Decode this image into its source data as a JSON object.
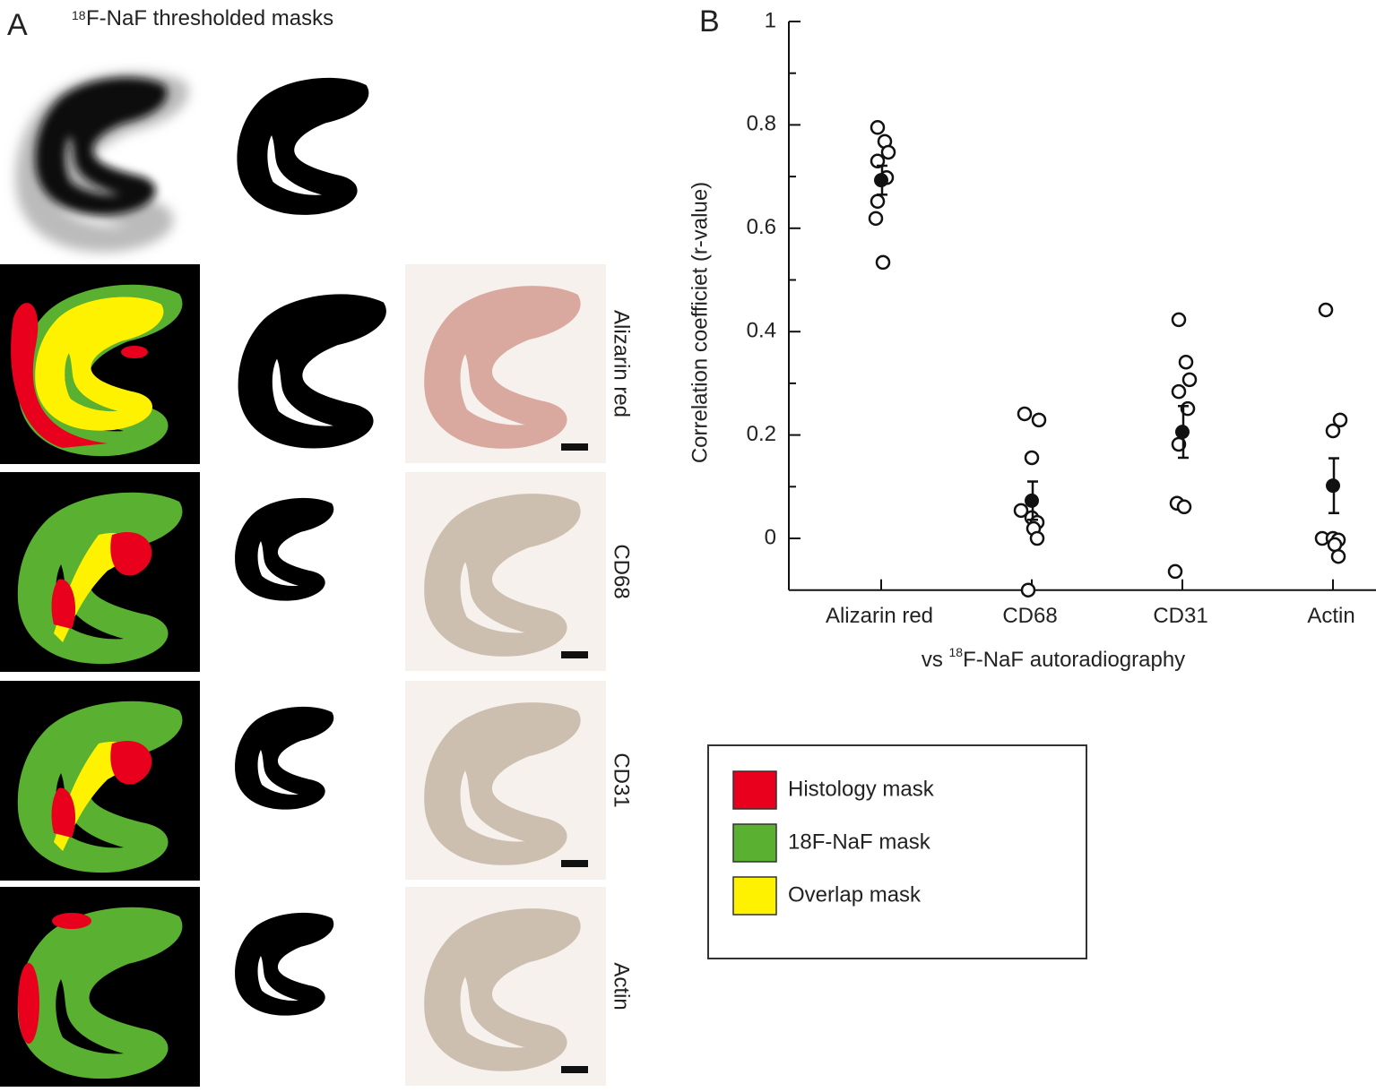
{
  "panel_a": {
    "label": "A",
    "title": {
      "superscript": "18",
      "text": "F-NaF thresholded masks"
    },
    "row_labels": [
      "Alizarin red",
      "CD68",
      "CD31",
      "Actin"
    ]
  },
  "legend": {
    "items": [
      {
        "name": "Histology mask",
        "color": "#e8001c"
      },
      {
        "name": "18F-NaF mask",
        "color": "#5ab030"
      },
      {
        "name": "Overlap mask",
        "color": "#fff200"
      }
    ]
  },
  "chart_data": {
    "type": "scatter",
    "label": "B",
    "ylabel": "Correlation coefficiet (r-value)",
    "xlabel": {
      "prefix": "vs ",
      "superscript": "18",
      "text": "F-NaF autoradiography"
    },
    "categories": [
      "Alizarin red",
      "CD68",
      "CD31",
      "Actin"
    ],
    "values": [
      [
        0.795,
        0.768,
        0.747,
        0.73,
        0.698,
        0.652,
        0.619,
        0.534
      ],
      [
        0.241,
        0.229,
        0.156,
        0.054,
        0.04,
        0.031,
        0.019,
        0.0,
        -0.1
      ],
      [
        0.423,
        0.341,
        0.307,
        0.284,
        0.251,
        0.182,
        0.068,
        0.061,
        -0.064
      ],
      [
        0.442,
        0.229,
        0.208,
        0.0,
        0.0,
        -0.003,
        -0.012,
        -0.035
      ]
    ],
    "means": [
      0.693,
      0.073,
      0.206,
      0.102
    ],
    "errors": [
      0.028,
      0.037,
      0.05,
      0.053
    ],
    "ylim": [
      -0.1,
      1
    ],
    "yticks": [
      0,
      0.2,
      0.4,
      0.6,
      0.8,
      1
    ],
    "yminorticks": [
      0.1,
      0.3,
      0.5,
      0.7,
      0.9
    ]
  }
}
